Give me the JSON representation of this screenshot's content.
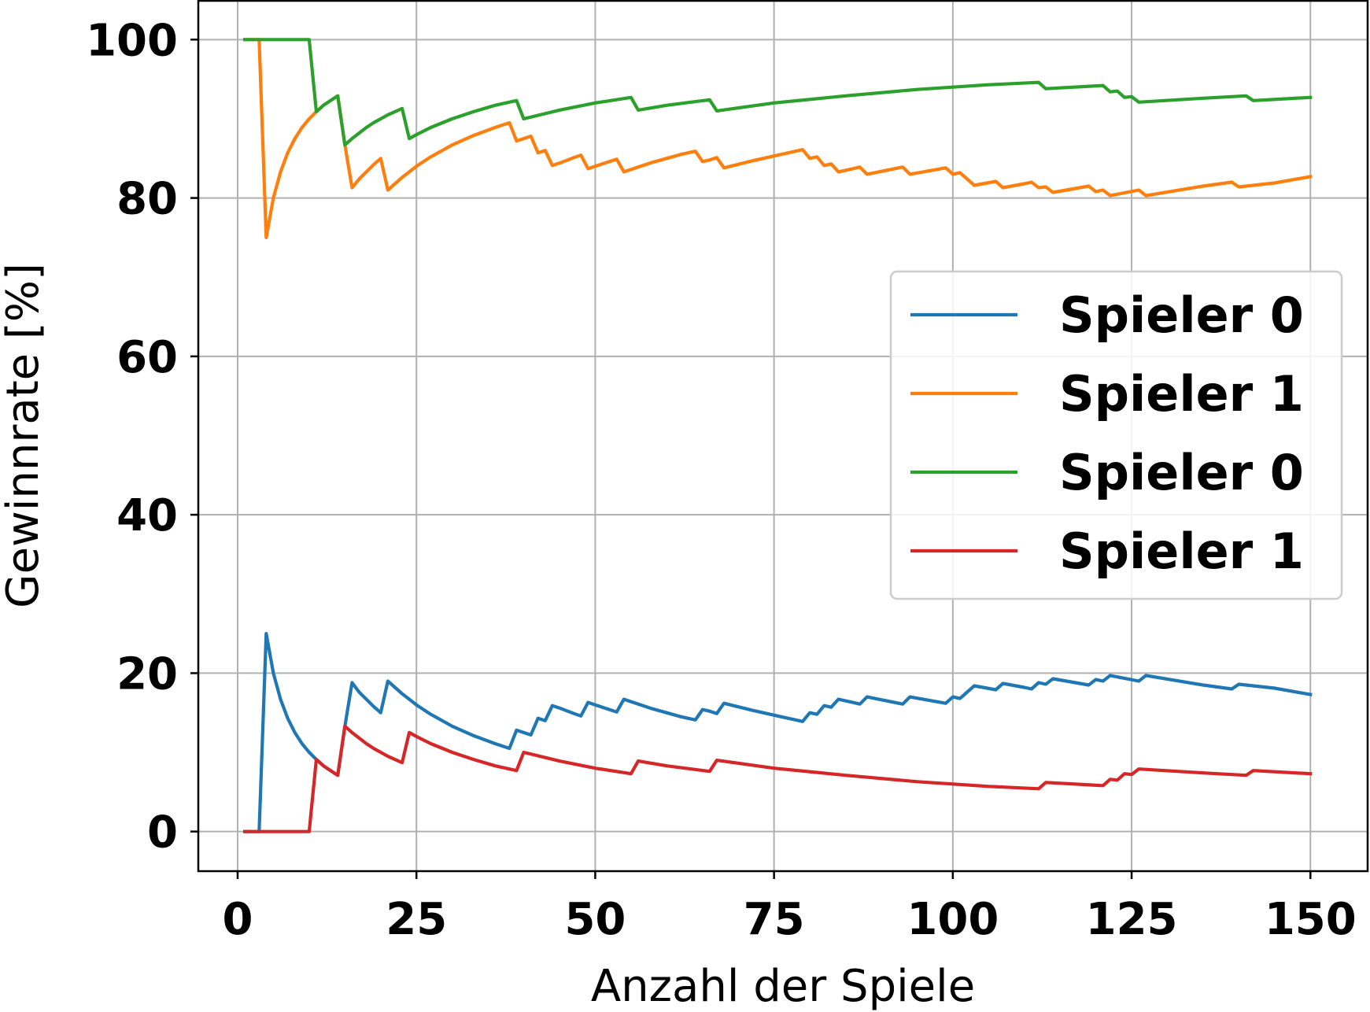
{
  "chart_data": {
    "type": "line",
    "title": "",
    "xlabel": "Anzahl der Spiele",
    "ylabel": "Gewinnrate [%]",
    "xlim": [
      -5.5,
      158
    ],
    "ylim": [
      -5,
      105
    ],
    "xticks": [
      0,
      25,
      50,
      75,
      100,
      125,
      150
    ],
    "yticks": [
      0,
      20,
      40,
      60,
      80,
      100
    ],
    "xtick_labels": [
      "0",
      "25",
      "50",
      "75",
      "100",
      "125",
      "150"
    ],
    "ytick_labels": [
      "0",
      "20",
      "40",
      "60",
      "80",
      "100"
    ],
    "grid": true,
    "legend_position": "center-right",
    "series": [
      {
        "name": "Spieler 0",
        "color": "#1f77b4",
        "points": [
          [
            1,
            0
          ],
          [
            3,
            0
          ],
          [
            4,
            25
          ],
          [
            5,
            20
          ],
          [
            6,
            16.7
          ],
          [
            7,
            14.3
          ],
          [
            8,
            12.5
          ],
          [
            9,
            11.1
          ],
          [
            10,
            10
          ],
          [
            11,
            9.1
          ],
          [
            12,
            8.3
          ],
          [
            13,
            7.7
          ],
          [
            14,
            7.1
          ],
          [
            15,
            13.3
          ],
          [
            16,
            18.8
          ],
          [
            17,
            17.6
          ],
          [
            18,
            16.7
          ],
          [
            19,
            15.8
          ],
          [
            20,
            15
          ],
          [
            21,
            19
          ],
          [
            22,
            18.2
          ],
          [
            23,
            17.4
          ],
          [
            24,
            16.7
          ],
          [
            25,
            16
          ],
          [
            27,
            14.8
          ],
          [
            30,
            13.3
          ],
          [
            33,
            12.1
          ],
          [
            36,
            11.1
          ],
          [
            38,
            10.5
          ],
          [
            39,
            12.8
          ],
          [
            40,
            12.5
          ],
          [
            41,
            12.2
          ],
          [
            42,
            14.3
          ],
          [
            43,
            14
          ],
          [
            44,
            15.9
          ],
          [
            45,
            15.6
          ],
          [
            47,
            14.9
          ],
          [
            48,
            14.6
          ],
          [
            49,
            16.3
          ],
          [
            50,
            16
          ],
          [
            52,
            15.4
          ],
          [
            53,
            15.1
          ],
          [
            54,
            16.7
          ],
          [
            58,
            15.5
          ],
          [
            62,
            14.5
          ],
          [
            64,
            14.1
          ],
          [
            65,
            15.4
          ],
          [
            66,
            15.2
          ],
          [
            67,
            14.9
          ],
          [
            68,
            16.2
          ],
          [
            72,
            15.3
          ],
          [
            76,
            14.5
          ],
          [
            79,
            13.9
          ],
          [
            80,
            15
          ],
          [
            81,
            14.8
          ],
          [
            82,
            15.9
          ],
          [
            83,
            15.7
          ],
          [
            84,
            16.7
          ],
          [
            86,
            16.3
          ],
          [
            87,
            16.1
          ],
          [
            88,
            17
          ],
          [
            93,
            16.1
          ],
          [
            94,
            17
          ],
          [
            99,
            16.2
          ],
          [
            100,
            17
          ],
          [
            101,
            16.8
          ],
          [
            103,
            18.4
          ],
          [
            106,
            17.9
          ],
          [
            107,
            18.7
          ],
          [
            110,
            18.2
          ],
          [
            111,
            18
          ],
          [
            112,
            18.8
          ],
          [
            113,
            18.6
          ],
          [
            114,
            19.3
          ],
          [
            119,
            18.5
          ],
          [
            120,
            19.2
          ],
          [
            121,
            19
          ],
          [
            122,
            19.7
          ],
          [
            126,
            19
          ],
          [
            127,
            19.7
          ],
          [
            135,
            18.5
          ],
          [
            139,
            18
          ],
          [
            140,
            18.6
          ],
          [
            145,
            18.1
          ],
          [
            150,
            17.3
          ]
        ]
      },
      {
        "name": "Spieler 1",
        "color": "#ff7f0e",
        "points": [
          [
            1,
            100
          ],
          [
            3,
            100
          ],
          [
            4,
            75
          ],
          [
            5,
            80
          ],
          [
            6,
            83.3
          ],
          [
            7,
            85.7
          ],
          [
            8,
            87.5
          ],
          [
            9,
            88.9
          ],
          [
            10,
            90
          ],
          [
            11,
            90.9
          ],
          [
            12,
            91.7
          ],
          [
            13,
            92.3
          ],
          [
            14,
            92.9
          ],
          [
            15,
            86.7
          ],
          [
            16,
            81.3
          ],
          [
            17,
            82.4
          ],
          [
            18,
            83.3
          ],
          [
            19,
            84.2
          ],
          [
            20,
            85
          ],
          [
            21,
            81
          ],
          [
            22,
            81.8
          ],
          [
            23,
            82.6
          ],
          [
            24,
            83.3
          ],
          [
            25,
            84
          ],
          [
            27,
            85.2
          ],
          [
            30,
            86.7
          ],
          [
            33,
            87.9
          ],
          [
            36,
            88.9
          ],
          [
            38,
            89.5
          ],
          [
            39,
            87.2
          ],
          [
            40,
            87.5
          ],
          [
            41,
            87.8
          ],
          [
            42,
            85.7
          ],
          [
            43,
            86
          ],
          [
            44,
            84.1
          ],
          [
            45,
            84.4
          ],
          [
            47,
            85.1
          ],
          [
            48,
            85.4
          ],
          [
            49,
            83.7
          ],
          [
            50,
            84
          ],
          [
            52,
            84.6
          ],
          [
            53,
            84.9
          ],
          [
            54,
            83.3
          ],
          [
            58,
            84.5
          ],
          [
            62,
            85.5
          ],
          [
            64,
            85.9
          ],
          [
            65,
            84.6
          ],
          [
            66,
            84.8
          ],
          [
            67,
            85.1
          ],
          [
            68,
            83.8
          ],
          [
            72,
            84.7
          ],
          [
            76,
            85.5
          ],
          [
            79,
            86.1
          ],
          [
            80,
            85
          ],
          [
            81,
            85.2
          ],
          [
            82,
            84.1
          ],
          [
            83,
            84.3
          ],
          [
            84,
            83.3
          ],
          [
            86,
            83.7
          ],
          [
            87,
            83.9
          ],
          [
            88,
            83
          ],
          [
            93,
            83.9
          ],
          [
            94,
            83
          ],
          [
            99,
            83.8
          ],
          [
            100,
            83
          ],
          [
            101,
            83.2
          ],
          [
            103,
            81.6
          ],
          [
            106,
            82.1
          ],
          [
            107,
            81.3
          ],
          [
            110,
            81.8
          ],
          [
            111,
            82
          ],
          [
            112,
            81.3
          ],
          [
            113,
            81.4
          ],
          [
            114,
            80.7
          ],
          [
            119,
            81.5
          ],
          [
            120,
            80.8
          ],
          [
            121,
            81
          ],
          [
            122,
            80.3
          ],
          [
            126,
            81
          ],
          [
            127,
            80.3
          ],
          [
            135,
            81.5
          ],
          [
            139,
            82
          ],
          [
            140,
            81.4
          ],
          [
            145,
            81.9
          ],
          [
            150,
            82.7
          ]
        ]
      },
      {
        "name": "Spieler 0",
        "color": "#2ca02c",
        "points": [
          [
            1,
            100
          ],
          [
            10,
            100
          ],
          [
            11,
            90.9
          ],
          [
            12,
            91.7
          ],
          [
            13,
            92.3
          ],
          [
            14,
            92.9
          ],
          [
            15,
            86.7
          ],
          [
            16,
            87.5
          ],
          [
            17,
            88.2
          ],
          [
            18,
            88.9
          ],
          [
            19,
            89.5
          ],
          [
            20,
            90
          ],
          [
            21,
            90.5
          ],
          [
            22,
            90.9
          ],
          [
            23,
            91.3
          ],
          [
            24,
            87.5
          ],
          [
            25,
            88
          ],
          [
            27,
            88.9
          ],
          [
            30,
            90
          ],
          [
            33,
            90.9
          ],
          [
            36,
            91.7
          ],
          [
            39,
            92.3
          ],
          [
            40,
            90
          ],
          [
            45,
            91.1
          ],
          [
            50,
            92
          ],
          [
            55,
            92.7
          ],
          [
            56,
            91.1
          ],
          [
            60,
            91.7
          ],
          [
            66,
            92.4
          ],
          [
            67,
            91
          ],
          [
            75,
            92
          ],
          [
            85,
            92.9
          ],
          [
            95,
            93.7
          ],
          [
            105,
            94.3
          ],
          [
            112,
            94.6
          ],
          [
            113,
            93.8
          ],
          [
            121,
            94.2
          ],
          [
            122,
            93.4
          ],
          [
            123,
            93.5
          ],
          [
            124,
            92.7
          ],
          [
            125,
            92.8
          ],
          [
            126,
            92.1
          ],
          [
            135,
            92.6
          ],
          [
            141,
            92.9
          ],
          [
            142,
            92.3
          ],
          [
            150,
            92.7
          ]
        ]
      },
      {
        "name": "Spieler 1",
        "color": "#d62728",
        "points": [
          [
            1,
            0
          ],
          [
            10,
            0
          ],
          [
            11,
            9.1
          ],
          [
            12,
            8.3
          ],
          [
            13,
            7.7
          ],
          [
            14,
            7.1
          ],
          [
            15,
            13.3
          ],
          [
            16,
            12.5
          ],
          [
            17,
            11.8
          ],
          [
            18,
            11.1
          ],
          [
            19,
            10.5
          ],
          [
            20,
            10
          ],
          [
            21,
            9.5
          ],
          [
            22,
            9.1
          ],
          [
            23,
            8.7
          ],
          [
            24,
            12.5
          ],
          [
            25,
            12
          ],
          [
            27,
            11.1
          ],
          [
            30,
            10
          ],
          [
            33,
            9.1
          ],
          [
            36,
            8.3
          ],
          [
            39,
            7.7
          ],
          [
            40,
            10
          ],
          [
            45,
            8.9
          ],
          [
            50,
            8
          ],
          [
            55,
            7.3
          ],
          [
            56,
            8.9
          ],
          [
            60,
            8.3
          ],
          [
            66,
            7.6
          ],
          [
            67,
            9
          ],
          [
            75,
            8
          ],
          [
            85,
            7.1
          ],
          [
            95,
            6.3
          ],
          [
            105,
            5.7
          ],
          [
            112,
            5.4
          ],
          [
            113,
            6.2
          ],
          [
            121,
            5.8
          ],
          [
            122,
            6.6
          ],
          [
            123,
            6.5
          ],
          [
            124,
            7.3
          ],
          [
            125,
            7.2
          ],
          [
            126,
            7.9
          ],
          [
            135,
            7.4
          ],
          [
            141,
            7.1
          ],
          [
            142,
            7.7
          ],
          [
            150,
            7.3
          ]
        ]
      }
    ]
  }
}
